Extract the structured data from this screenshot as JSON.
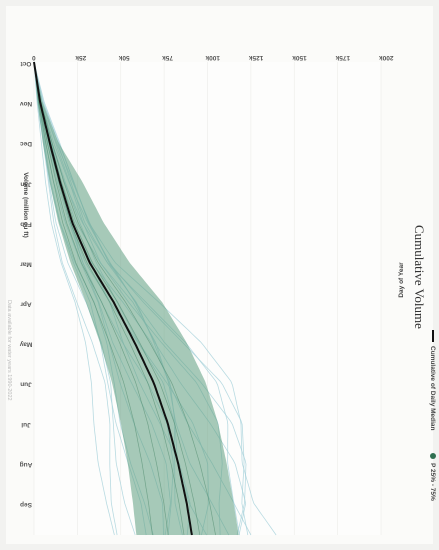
{
  "chart_data": {
    "type": "line",
    "title": "Cumulative Volume",
    "xlabel": "Day of Year",
    "ylabel": "Volume (million cu ft)",
    "x_categories": [
      "Oct",
      "Nov",
      "Dec",
      "Jan",
      "Feb",
      "Mar",
      "Apr",
      "May",
      "Jun",
      "Jul",
      "Aug",
      "Sep"
    ],
    "y_ticks": [
      "0",
      "25k",
      "50k",
      "75k",
      "100k",
      "125k",
      "150k",
      "175k",
      "200k"
    ],
    "ylim": [
      0,
      200000
    ],
    "legend": [
      {
        "label": "Cumulative of Daily Median",
        "symbol": "line",
        "color": "#111111"
      },
      {
        "label": "P 25% - 75%",
        "symbol": "dot",
        "color": "#2f6f50"
      }
    ],
    "median": {
      "name": "Cumulative of Daily Median",
      "x": [
        0,
        1,
        2,
        3,
        4,
        5,
        6,
        7,
        8,
        9,
        10,
        11,
        11.8
      ],
      "y": [
        0,
        3500,
        9000,
        15000,
        22000,
        32000,
        46000,
        58000,
        69000,
        77000,
        83000,
        88000,
        91000
      ]
    },
    "p25": {
      "x": [
        0,
        1,
        2,
        3,
        4,
        5,
        6,
        7,
        8,
        9,
        10,
        11,
        11.8
      ],
      "y": [
        0,
        2000,
        5000,
        9000,
        14000,
        21000,
        30000,
        38000,
        45000,
        50000,
        54000,
        57000,
        59000
      ]
    },
    "p75": {
      "x": [
        0,
        1,
        2,
        3,
        4,
        5,
        6,
        7,
        8,
        9,
        10,
        11,
        11.8
      ],
      "y": [
        0,
        5000,
        14000,
        28000,
        40000,
        55000,
        74000,
        88000,
        99000,
        106000,
        111000,
        115000,
        118000
      ]
    },
    "colors": {
      "band": "#5f9e7f",
      "year_lines": "#a8d2db",
      "median": "#111111"
    }
  },
  "footer_note": "Data available for water years 1990-2022"
}
